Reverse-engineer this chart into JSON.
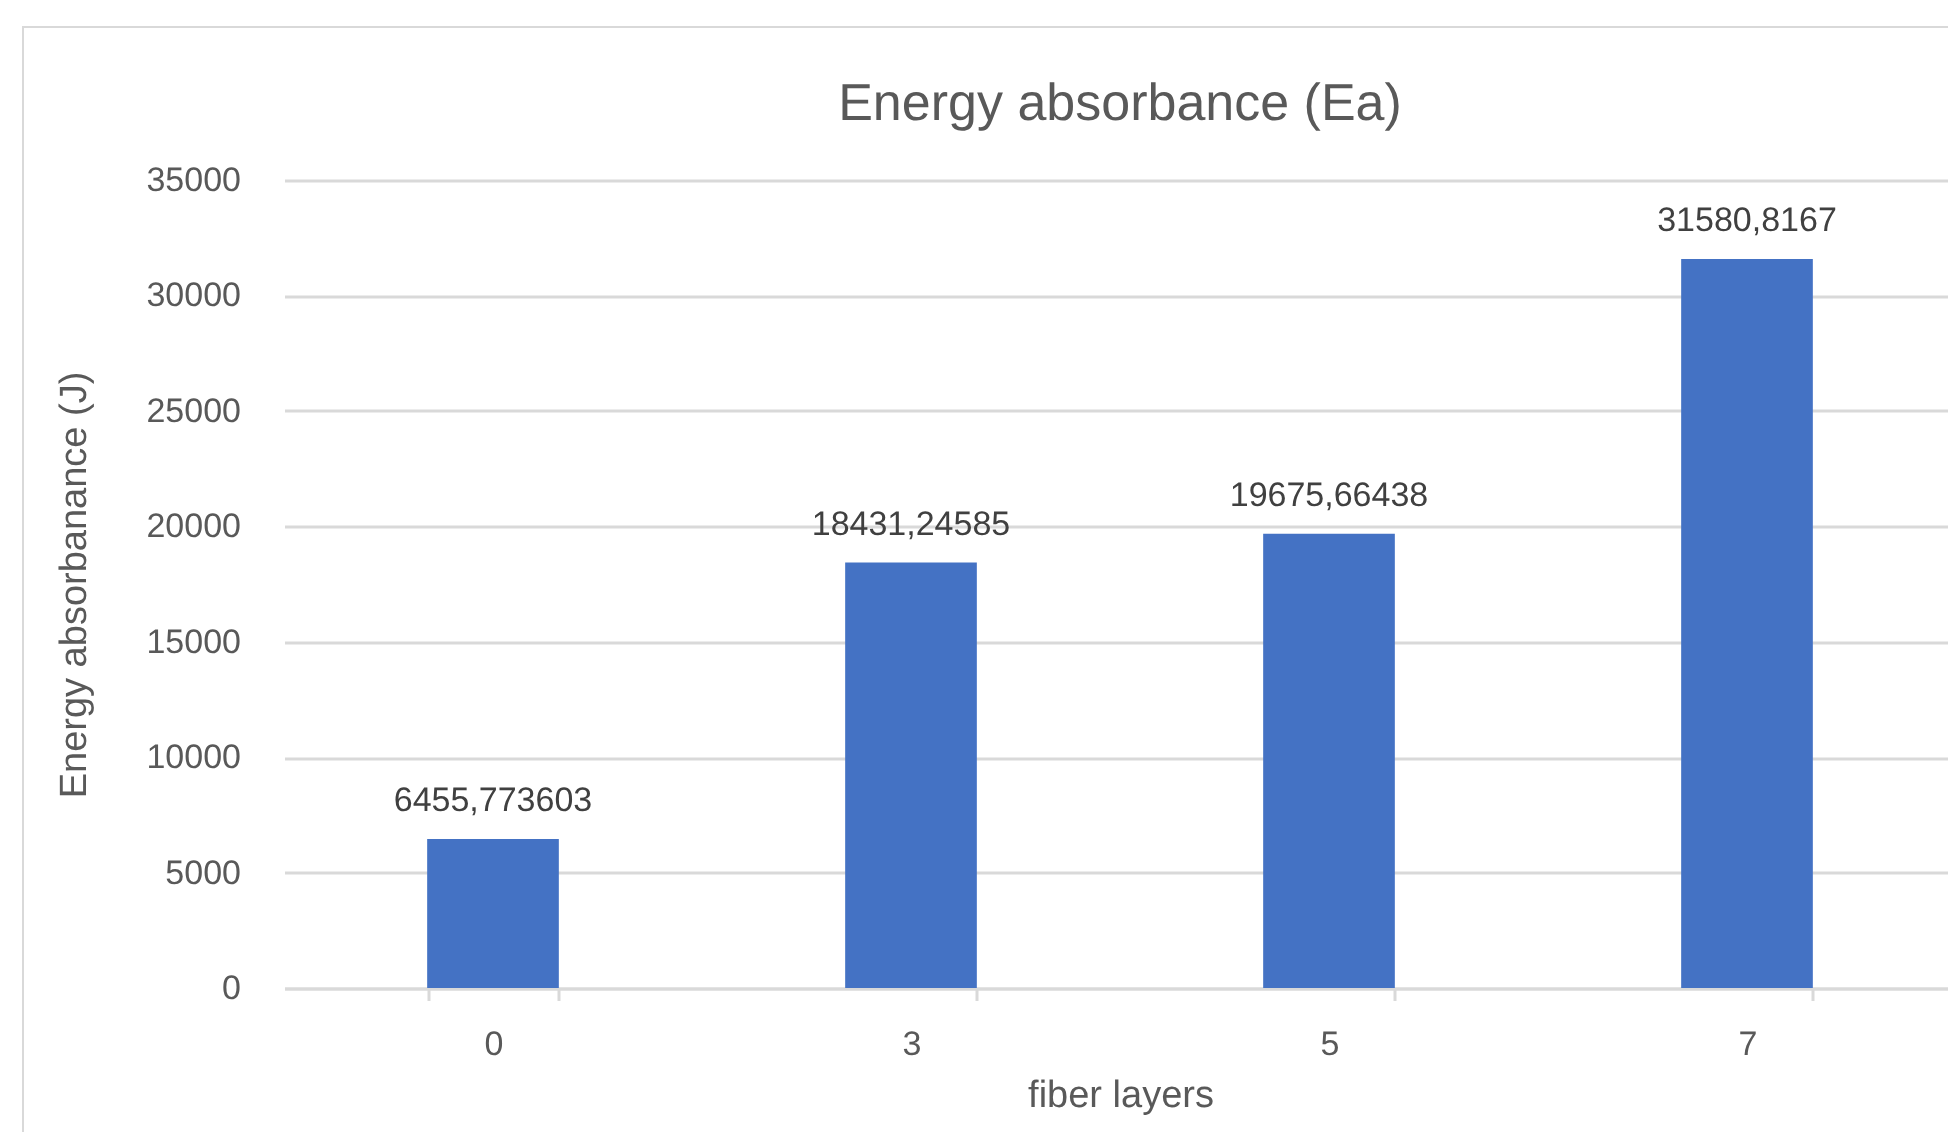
{
  "chart_data": {
    "type": "bar",
    "title": "Energy absorbance (Ea)",
    "xlabel": "fiber layers",
    "ylabel": "Energy absorbanance (J)",
    "categories": [
      "0",
      "3",
      "5",
      "7"
    ],
    "values": [
      6455.773603,
      18431.24585,
      19675.66438,
      31580.8167
    ],
    "value_labels": [
      "6455,773603",
      "18431,24585",
      "19675,66438",
      "31580,8167"
    ],
    "color": "#4472c4",
    "ylim": [
      0,
      35000
    ],
    "yticks": [
      0,
      5000,
      10000,
      15000,
      20000,
      25000,
      30000,
      35000
    ],
    "grid": "y"
  }
}
